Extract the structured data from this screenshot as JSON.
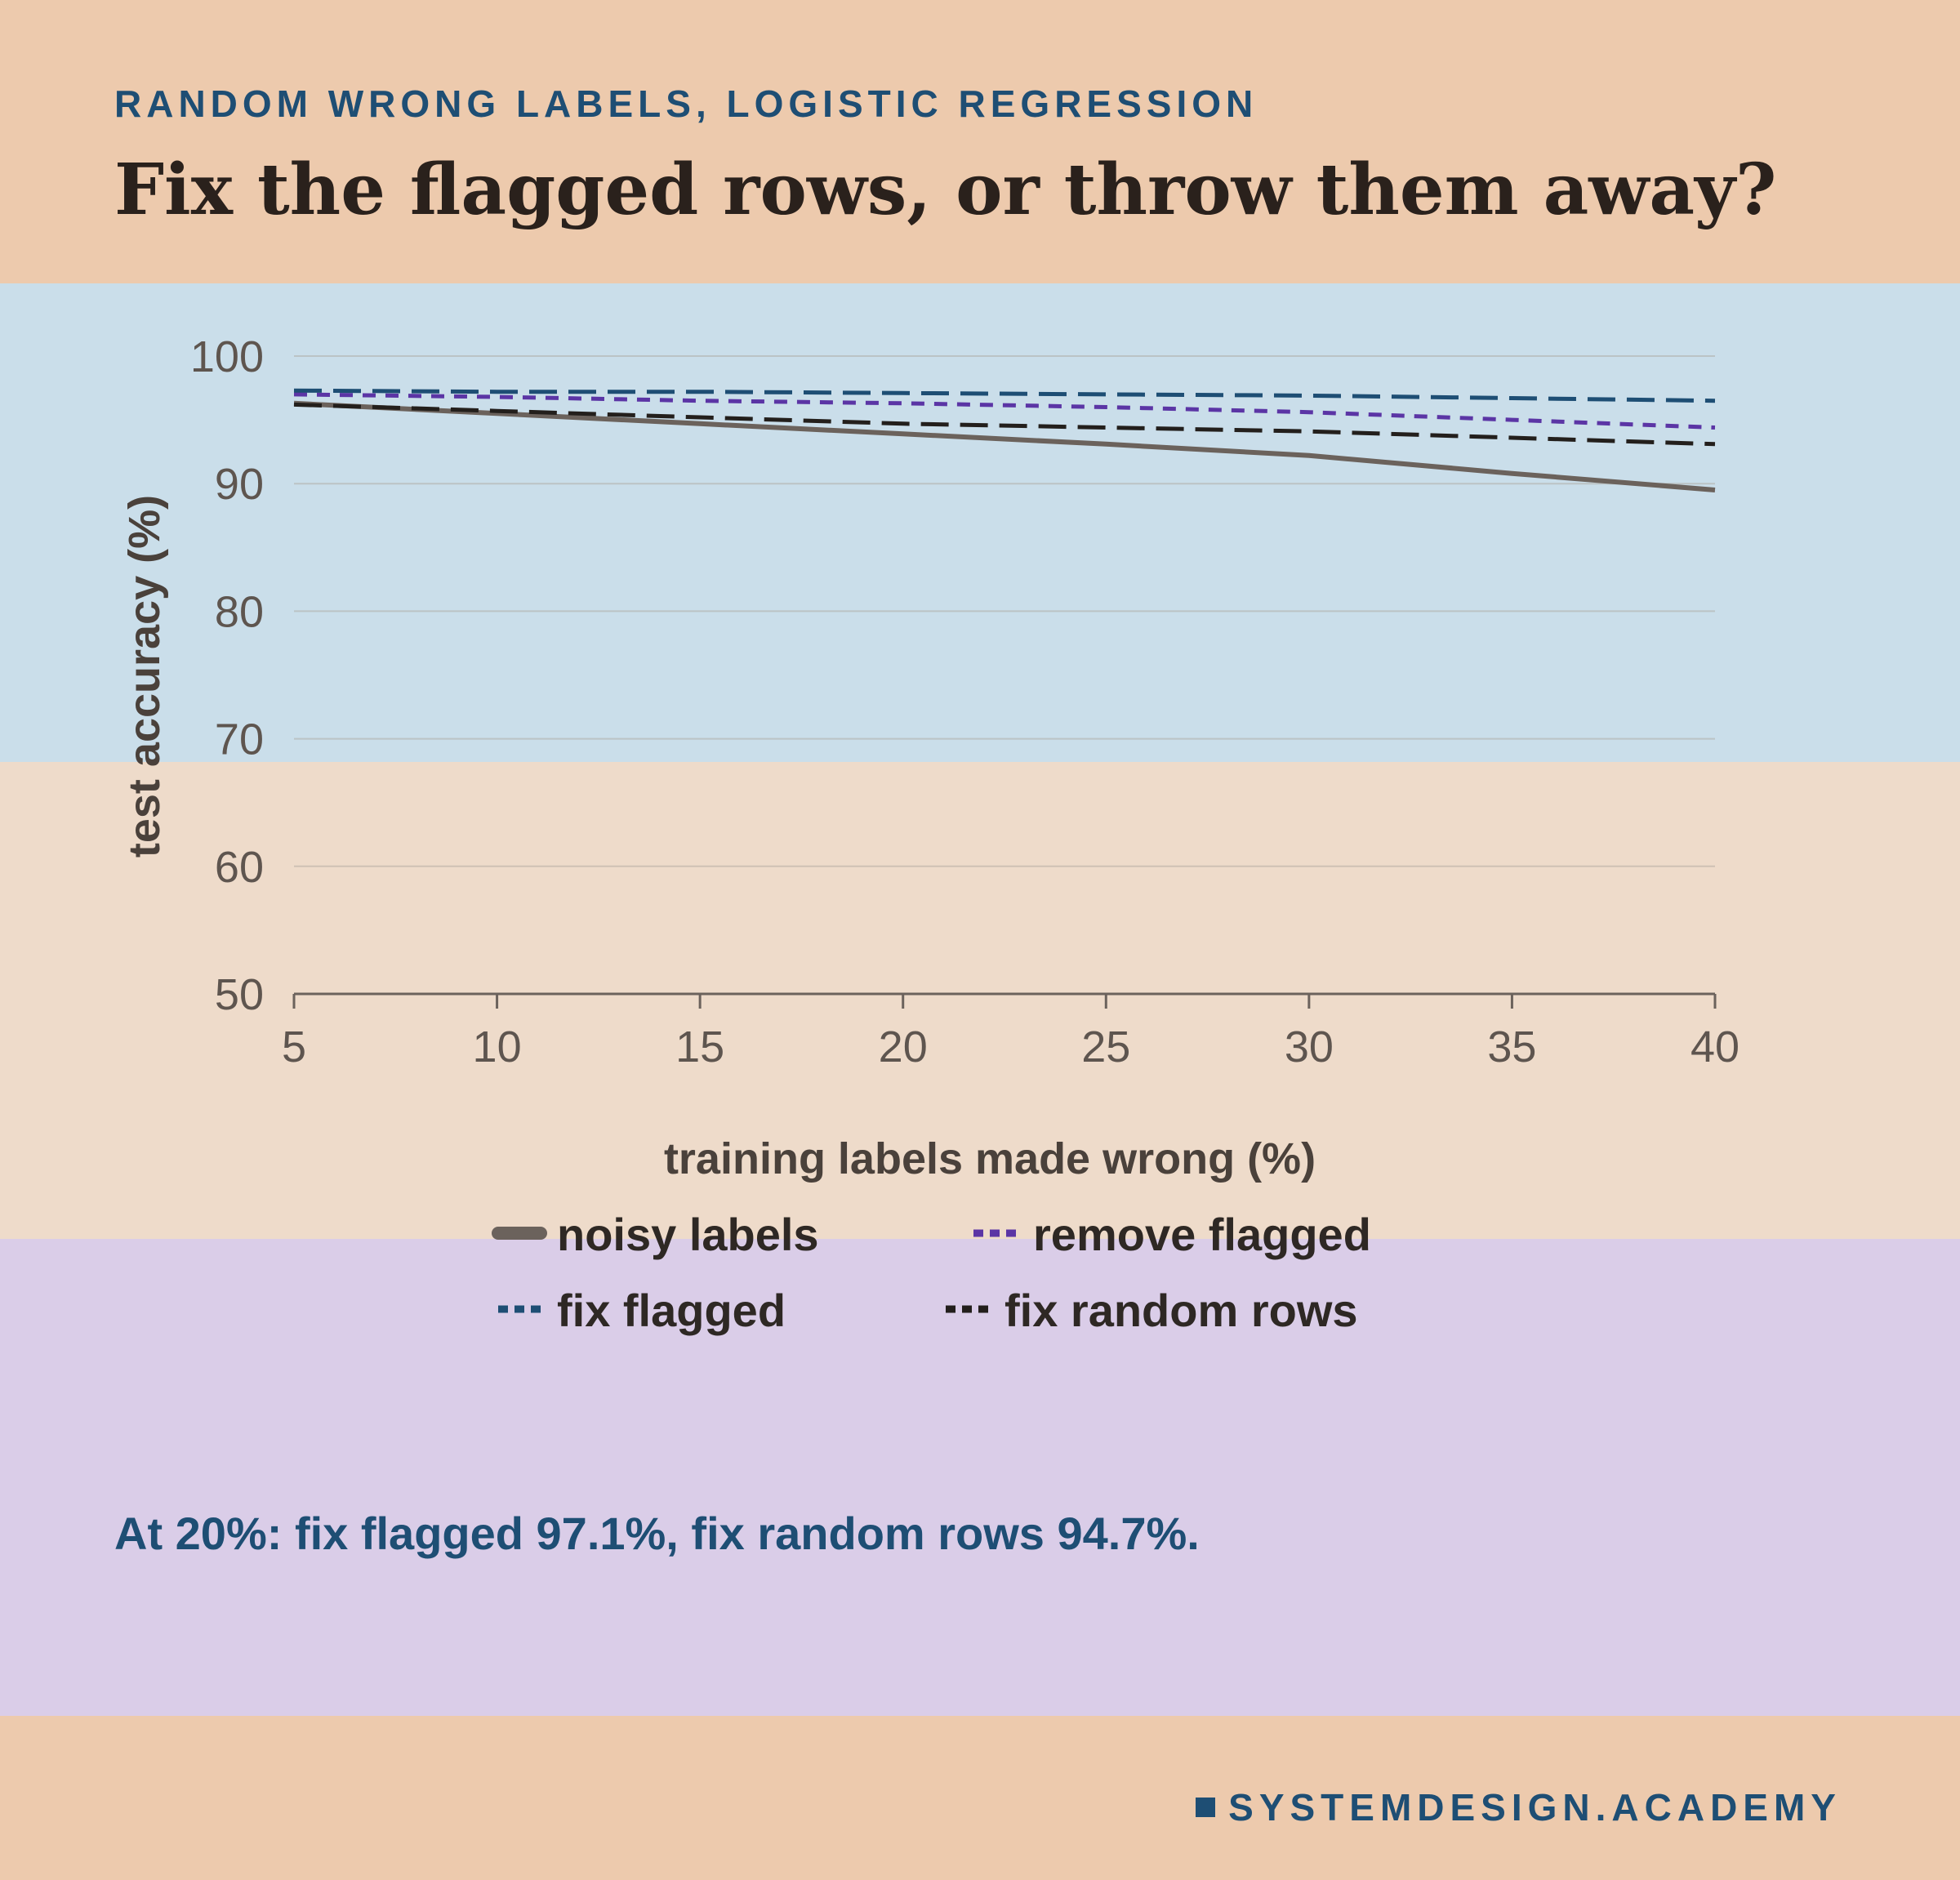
{
  "header": {
    "kicker": "RANDOM WRONG LABELS, LOGISTIC REGRESSION",
    "title": "Fix the flagged rows, or throw them away?"
  },
  "chart_data": {
    "type": "line",
    "xlabel": "training labels made wrong (%)",
    "ylabel": "test accuracy (%)",
    "x": [
      5,
      10,
      15,
      20,
      25,
      30,
      35,
      40
    ],
    "xlim": [
      5,
      40
    ],
    "ylim": [
      50,
      100
    ],
    "xticks": [
      5,
      10,
      15,
      20,
      25,
      30,
      35,
      40
    ],
    "yticks": [
      50,
      60,
      70,
      80,
      90,
      100
    ],
    "grid": true,
    "legend_position": "bottom",
    "series": [
      {
        "name": "noisy labels",
        "color": "#6b625c",
        "dash": "solid",
        "values": [
          96.3,
          95.5,
          94.7,
          93.9,
          93.1,
          92.2,
          90.8,
          89.5
        ]
      },
      {
        "name": "remove flagged",
        "color": "#5b35a5",
        "dash": "short",
        "values": [
          97.0,
          96.8,
          96.5,
          96.3,
          96.0,
          95.6,
          95.0,
          94.4
        ]
      },
      {
        "name": "fix flagged",
        "color": "#1e4e74",
        "dash": "long",
        "values": [
          97.3,
          97.2,
          97.2,
          97.1,
          97.0,
          96.9,
          96.7,
          96.5
        ]
      },
      {
        "name": "fix random rows",
        "color": "#231f1c",
        "dash": "long",
        "values": [
          96.2,
          95.7,
          95.2,
          94.7,
          94.4,
          94.1,
          93.6,
          93.1
        ]
      }
    ]
  },
  "note": "At 20%: fix flagged 97.1%, fix random rows 94.7%.",
  "brand": "SYSTEMDESIGN.ACADEMY"
}
